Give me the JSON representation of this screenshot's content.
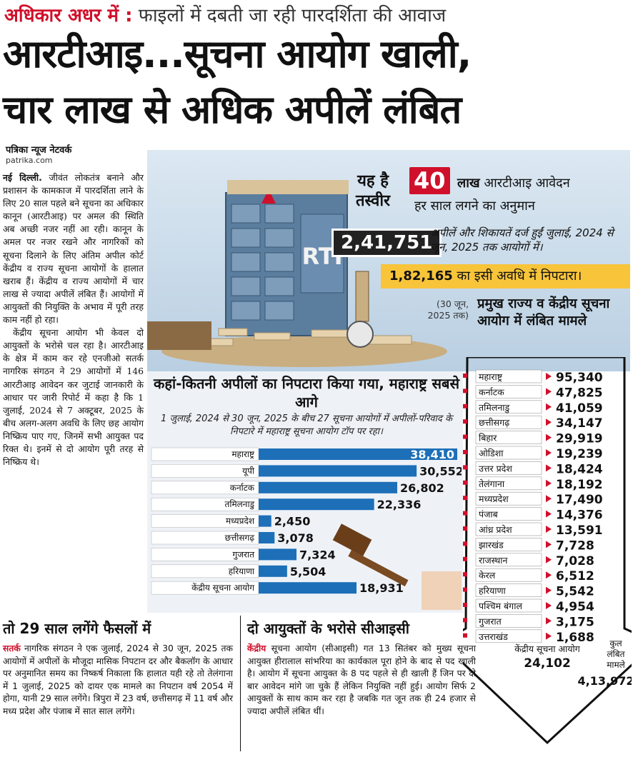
{
  "kicker": {
    "red": "अधिकार अधर में :",
    "rest": " फाइलों में दबती जा रही पारदर्शिता की आवाज"
  },
  "headline": {
    "line1": "आरटीआइ...सूचना आयोग खाली,",
    "line2": "चार लाख से अधिक अपीलें लंबित"
  },
  "byline": "पत्रिका न्यूज नेटवर्क",
  "site": "patrika.com",
  "body": {
    "dateline": "नई दिल्ली.",
    "p1": " जीवंत लोकतंत्र बनाने और प्रशासन के कामकाज में पारदर्शिता लाने के लिए 20 साल पहले बने सूचना का अधिकार कानून (आरटीआइ) पर अमल की स्थिति अब अच्छी नजर नहीं आ रही। कानून के अमल पर नजर रखने और नागरिकों को सूचना दिलाने के लिए अंतिम अपील कोर्ट केंद्रीय व राज्य सूचना आयोगों के हालात खराब हैं। केंद्रीय व राज्य आयोगों में चार लाख से ज्यादा अपीलें लंबित हैं। आयोगों में आयुक्तों की नियुक्ति के अभाव में पूरी तरह काम नहीं हो रहा।",
    "p2": "केंद्रीय सूचना आयोग भी केवल दो आयुक्तों के भरोसे चल रहा है। आरटीआइ के क्षेत्र में काम कर रहे एनजीओ सतर्क नागरिक संगठन ने 29 आयोगों में 146 आरटीआइ आवेदन कर जुटाई जानकारी के आधार पर जारी रिपोर्ट में कहा है कि 1 जुलाई, 2024 से 7 अक्टूबर, 2025 के बीच अलग-अलग अवधि के लिए छह आयोग निष्क्रिय पाए गए, जिनमें सभी आयुक्त पद रिक्त थे। इनमें से दो आयोग पूरी तरह से निष्क्रिय थे।"
  },
  "hero": {
    "yah": "यह है",
    "tasveer": "तस्वीर",
    "forty_num": "40",
    "forty_lakh": "लाख",
    "forty_rest": " आरटीआइ आवेदन",
    "forty_line2": "हर साल लगने का अनुमान",
    "pending_num": "2,41,751",
    "pending_text": "अपीलें और शिकायतें दर्ज हुईं जुलाई, 2024 से जून, 2025 तक आयोगों में।",
    "disposed_num": "1,82,165",
    "disposed_text": " का इसी अवधि में निपटारा।",
    "rti_label": "RTI"
  },
  "states_box": {
    "as_of": "(30 जून, 2025 तक)",
    "title": "प्रमुख राज्य व केंद्रीय सूचना आयोग में लंबित मामले"
  },
  "bar_section": {
    "title": "कहां-कितनी अपीलों का निपटारा किया गया, महाराष्ट्र सबसे आगे",
    "subtitle": "1 जुलाई, 2024 से 30 जून, 2025 के बीच 27 सूचना आयोगों में अपीलों-परिवाद के निपटारे में महाराष्ट्र सूचना आयोग टॉप पर रहा।"
  },
  "chart_data": [
    {
      "type": "bar",
      "orientation": "horizontal",
      "categories": [
        "महाराष्ट्र",
        "यूपी",
        "कर्नाटक",
        "तमिलनाडु",
        "मध्यप्रदेश",
        "छत्तीसगढ़",
        "गुजरात",
        "हरियाणा",
        "केंद्रीय सूचना आयोग"
      ],
      "values": [
        38410,
        30552,
        26802,
        22336,
        2450,
        3078,
        7324,
        5504,
        18931
      ],
      "value_labels": [
        "38,410",
        "30,552",
        "26,802",
        "22,336",
        "2,450",
        "3,078",
        "7,324",
        "5,504",
        "18,931"
      ],
      "color": "#1d6fb8"
    },
    {
      "type": "table",
      "categories": [
        "महाराष्ट्र",
        "कर्नाटक",
        "तमिलनाडु",
        "छत्तीसगढ़",
        "बिहार",
        "ओडिशा",
        "उत्तर प्रदेश",
        "तेलंगाना",
        "मध्यप्रदेश",
        "पंजाब",
        "आंध्र प्रदेश",
        "झारखंड",
        "राजस्थान",
        "केरल",
        "हरियाणा",
        "पश्चिम बंगाल",
        "गुजरात",
        "उत्तराखंड"
      ],
      "values": [
        95340,
        47825,
        41059,
        34147,
        29919,
        19239,
        18424,
        18192,
        17490,
        14376,
        13591,
        7728,
        7028,
        6512,
        5542,
        4954,
        3175,
        1688
      ],
      "value_labels": [
        "95,340",
        "47,825",
        "41,059",
        "34,147",
        "29,919",
        "19,239",
        "18,424",
        "18,192",
        "17,490",
        "14,376",
        "13,591",
        "7,728",
        "7,028",
        "6,512",
        "5,542",
        "4,954",
        "3,175",
        "1,688"
      ],
      "central_label": "केंद्रीय सूचना आयोग",
      "central_value": "24,102",
      "total_label": "कुल लंबित मामले",
      "total_value": "4,13,972"
    }
  ],
  "sec1": {
    "heading": "तो 29 साल लगेंगे फैसलों में",
    "lead": "सतर्क",
    "text": " नागरिक संगठन ने एक जुलाई, 2024 से 30 जून, 2025 तक आयोगों में अपीलों के मौजूदा मासिक निपटान दर और बैकलॉग के आधार पर अनुमानित समय का निष्कर्ष निकाला कि हालात यही रहे तो तेलंगाना में 1 जुलाई, 2025 को दायर एक मामले का निपटान वर्ष 2054 में होगा, यानी 29 साल लगेंगे। त्रिपुरा में 23 वर्ष, छत्तीसगढ़ में 11 वर्ष और मध्य प्रदेश और पंजाब में सात साल लगेंगे।"
  },
  "sec2": {
    "heading": "दो आयुक्तों के भरोसे सीआइसी",
    "lead": "केंद्रीय",
    "text": " सूचना आयोग (सीआइसी) गत 13 सितंबर को मुख्य सूचना आयुक्त हीरालाल सांभरिया का कार्यकाल पूरा होने के बाद से पद खाली है। आयोग में सूचना आयुक्त के 8 पद पहले से ही खाली हैं जिन पर दो बार आवेदन मांगे जा चुके हैं लेकिन नियुक्ति नहीं हुई। आयोग सिर्फ 2 आयुक्तों के साथ काम कर रहा है जबकि गत जून तक ही 24 हजार से ज्यादा अपीलें लंबित थीं।"
  },
  "colors": {
    "red": "#d0102b",
    "blue": "#1d6fb8",
    "yellow": "#f8c43a",
    "dark": "#222222"
  }
}
